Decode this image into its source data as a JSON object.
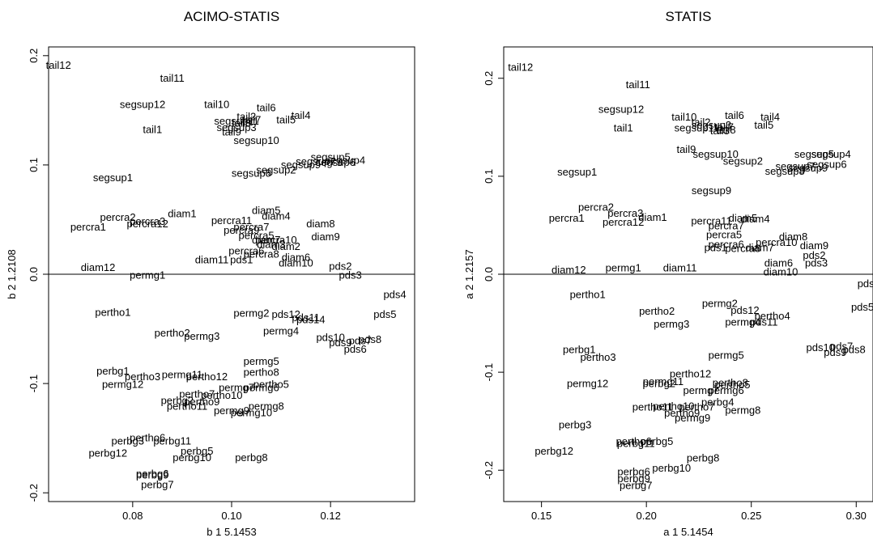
{
  "chart_data": [
    {
      "type": "scatter",
      "title": "ACIMO-STATIS",
      "xlabel": "b 1 5.1453",
      "ylabel": "b 2 1.2108",
      "xlim": [
        0.063,
        0.137
      ],
      "ylim": [
        -0.208,
        0.208
      ],
      "xticks": [
        0.08,
        0.1,
        0.12
      ],
      "xtick_labels": [
        "0.08",
        "0.10",
        "0.12"
      ],
      "yticks": [
        -0.2,
        -0.1,
        0.0,
        0.1,
        0.2
      ],
      "ytick_labels": [
        "-0.2",
        "-0.1",
        "0.0",
        "0.1",
        "0.2"
      ],
      "hline": 0,
      "points": [
        {
          "label": "tail12",
          "x": 0.065,
          "y": 0.191
        },
        {
          "label": "tail11",
          "x": 0.088,
          "y": 0.179
        },
        {
          "label": "tail10",
          "x": 0.097,
          "y": 0.155
        },
        {
          "label": "tail6",
          "x": 0.107,
          "y": 0.152
        },
        {
          "label": "tail4",
          "x": 0.114,
          "y": 0.145
        },
        {
          "label": "tail5",
          "x": 0.111,
          "y": 0.141
        },
        {
          "label": "tail7",
          "x": 0.104,
          "y": 0.141
        },
        {
          "label": "tail2",
          "x": 0.103,
          "y": 0.144
        },
        {
          "label": "tail3",
          "x": 0.102,
          "y": 0.138
        },
        {
          "label": "tail8",
          "x": 0.102,
          "y": 0.138
        },
        {
          "label": "tail9",
          "x": 0.1,
          "y": 0.13
        },
        {
          "label": "segsup12",
          "x": 0.082,
          "y": 0.155
        },
        {
          "label": "segsup11",
          "x": 0.101,
          "y": 0.14
        },
        {
          "label": "segsup3",
          "x": 0.101,
          "y": 0.134
        },
        {
          "label": "tail1",
          "x": 0.084,
          "y": 0.132
        },
        {
          "label": "segsup10",
          "x": 0.105,
          "y": 0.122
        },
        {
          "label": "segsup5",
          "x": 0.12,
          "y": 0.107
        },
        {
          "label": "segsup4",
          "x": 0.123,
          "y": 0.104
        },
        {
          "label": "segsup6",
          "x": 0.121,
          "y": 0.102
        },
        {
          "label": "segsup7",
          "x": 0.117,
          "y": 0.103
        },
        {
          "label": "segsup9",
          "x": 0.114,
          "y": 0.1
        },
        {
          "label": "segsup2",
          "x": 0.109,
          "y": 0.095
        },
        {
          "label": "segsup8",
          "x": 0.104,
          "y": 0.092
        },
        {
          "label": "segsup1",
          "x": 0.076,
          "y": 0.088
        },
        {
          "label": "percra2",
          "x": 0.077,
          "y": 0.052
        },
        {
          "label": "percra1",
          "x": 0.071,
          "y": 0.043
        },
        {
          "label": "percra3",
          "x": 0.083,
          "y": 0.048
        },
        {
          "label": "percra12",
          "x": 0.083,
          "y": 0.046
        },
        {
          "label": "diam1",
          "x": 0.09,
          "y": 0.055
        },
        {
          "label": "diam5",
          "x": 0.107,
          "y": 0.058
        },
        {
          "label": "diam4",
          "x": 0.109,
          "y": 0.053
        },
        {
          "label": "percra11",
          "x": 0.1,
          "y": 0.049
        },
        {
          "label": "percra7",
          "x": 0.104,
          "y": 0.043
        },
        {
          "label": "percra9",
          "x": 0.102,
          "y": 0.04
        },
        {
          "label": "diam8",
          "x": 0.118,
          "y": 0.046
        },
        {
          "label": "percra5",
          "x": 0.105,
          "y": 0.035
        },
        {
          "label": "diam7",
          "x": 0.107,
          "y": 0.031
        },
        {
          "label": "percra10",
          "x": 0.109,
          "y": 0.031
        },
        {
          "label": "diam9",
          "x": 0.119,
          "y": 0.034
        },
        {
          "label": "diam3",
          "x": 0.108,
          "y": 0.027
        },
        {
          "label": "diam2",
          "x": 0.111,
          "y": 0.025
        },
        {
          "label": "percra6",
          "x": 0.103,
          "y": 0.021
        },
        {
          "label": "percra8",
          "x": 0.106,
          "y": 0.018
        },
        {
          "label": "diam11",
          "x": 0.096,
          "y": 0.013
        },
        {
          "label": "pds1",
          "x": 0.102,
          "y": 0.013
        },
        {
          "label": "diam6",
          "x": 0.113,
          "y": 0.015
        },
        {
          "label": "diam10",
          "x": 0.113,
          "y": 0.01
        },
        {
          "label": "diam12",
          "x": 0.073,
          "y": 0.006
        },
        {
          "label": "permg1",
          "x": 0.083,
          "y": -0.001
        },
        {
          "label": "pds2",
          "x": 0.122,
          "y": 0.007
        },
        {
          "label": "pds3",
          "x": 0.124,
          "y": -0.001
        },
        {
          "label": "pds4",
          "x": 0.133,
          "y": -0.019
        },
        {
          "label": "pds5",
          "x": 0.131,
          "y": -0.037
        },
        {
          "label": "pertho1",
          "x": 0.076,
          "y": -0.035
        },
        {
          "label": "permg2",
          "x": 0.104,
          "y": -0.036
        },
        {
          "label": "pds12",
          "x": 0.111,
          "y": -0.037
        },
        {
          "label": "pds11",
          "x": 0.115,
          "y": -0.04
        },
        {
          "label": "pds14",
          "x": 0.116,
          "y": -0.042
        },
        {
          "label": "pertho2",
          "x": 0.088,
          "y": -0.054
        },
        {
          "label": "permg3",
          "x": 0.094,
          "y": -0.057
        },
        {
          "label": "permg4",
          "x": 0.11,
          "y": -0.052
        },
        {
          "label": "pds10",
          "x": 0.12,
          "y": -0.058
        },
        {
          "label": "pds7",
          "x": 0.126,
          "y": -0.061
        },
        {
          "label": "pds8",
          "x": 0.128,
          "y": -0.06
        },
        {
          "label": "pds9",
          "x": 0.122,
          "y": -0.063
        },
        {
          "label": "pds6",
          "x": 0.125,
          "y": -0.069
        },
        {
          "label": "permg5",
          "x": 0.106,
          "y": -0.08
        },
        {
          "label": "pertho8",
          "x": 0.106,
          "y": -0.09
        },
        {
          "label": "perbg1",
          "x": 0.076,
          "y": -0.089
        },
        {
          "label": "pertho3",
          "x": 0.082,
          "y": -0.094
        },
        {
          "label": "permg11",
          "x": 0.09,
          "y": -0.092
        },
        {
          "label": "pertho12",
          "x": 0.095,
          "y": -0.094
        },
        {
          "label": "permg12",
          "x": 0.078,
          "y": -0.101
        },
        {
          "label": "pertho5",
          "x": 0.108,
          "y": -0.101
        },
        {
          "label": "permg6",
          "x": 0.106,
          "y": -0.104
        },
        {
          "label": "permg7",
          "x": 0.101,
          "y": -0.104
        },
        {
          "label": "pertho7",
          "x": 0.093,
          "y": -0.11
        },
        {
          "label": "pertho10",
          "x": 0.098,
          "y": -0.111
        },
        {
          "label": "perbg2",
          "x": 0.089,
          "y": -0.116
        },
        {
          "label": "pertho9",
          "x": 0.094,
          "y": -0.117
        },
        {
          "label": "pertho11",
          "x": 0.091,
          "y": -0.121
        },
        {
          "label": "permg8",
          "x": 0.107,
          "y": -0.121
        },
        {
          "label": "permg9",
          "x": 0.1,
          "y": -0.125
        },
        {
          "label": "permg10",
          "x": 0.104,
          "y": -0.127
        },
        {
          "label": "perbg3",
          "x": 0.079,
          "y": -0.153
        },
        {
          "label": "pertho6",
          "x": 0.083,
          "y": -0.15
        },
        {
          "label": "perbg11",
          "x": 0.088,
          "y": -0.153
        },
        {
          "label": "perbg12",
          "x": 0.075,
          "y": -0.164
        },
        {
          "label": "perbg5",
          "x": 0.093,
          "y": -0.162
        },
        {
          "label": "perbg10",
          "x": 0.092,
          "y": -0.168
        },
        {
          "label": "perbg8",
          "x": 0.104,
          "y": -0.168
        },
        {
          "label": "perbg6",
          "x": 0.084,
          "y": -0.183
        },
        {
          "label": "perbg9",
          "x": 0.084,
          "y": -0.184
        },
        {
          "label": "perbg7",
          "x": 0.085,
          "y": -0.193
        }
      ]
    },
    {
      "type": "scatter",
      "title": "STATIS",
      "xlabel": "a 1 5.1454",
      "ylabel": "a 2 1.2157",
      "xlim": [
        0.132,
        0.308
      ],
      "ylim": [
        -0.232,
        0.232
      ],
      "xticks": [
        0.15,
        0.2,
        0.25,
        0.3
      ],
      "xtick_labels": [
        "0.15",
        "0.20",
        "0.25",
        "0.30"
      ],
      "yticks": [
        -0.2,
        -0.1,
        0.0,
        0.1,
        0.2
      ],
      "ytick_labels": [
        "-0.2",
        "-0.1",
        "0.0",
        "0.1",
        "0.2"
      ],
      "hline": 0,
      "points": [
        {
          "label": "tail12",
          "x": 0.14,
          "y": 0.211
        },
        {
          "label": "tail11",
          "x": 0.196,
          "y": 0.193
        },
        {
          "label": "segsup12",
          "x": 0.188,
          "y": 0.168
        },
        {
          "label": "tail10",
          "x": 0.218,
          "y": 0.16
        },
        {
          "label": "tail6",
          "x": 0.242,
          "y": 0.162
        },
        {
          "label": "tail4",
          "x": 0.259,
          "y": 0.16
        },
        {
          "label": "tail2",
          "x": 0.226,
          "y": 0.155
        },
        {
          "label": "segsup3",
          "x": 0.231,
          "y": 0.152
        },
        {
          "label": "tail7",
          "x": 0.237,
          "y": 0.15
        },
        {
          "label": "tail5",
          "x": 0.256,
          "y": 0.152
        },
        {
          "label": "segsup11",
          "x": 0.224,
          "y": 0.149
        },
        {
          "label": "tail1",
          "x": 0.189,
          "y": 0.149
        },
        {
          "label": "tail3",
          "x": 0.235,
          "y": 0.146
        },
        {
          "label": "tail8",
          "x": 0.238,
          "y": 0.147
        },
        {
          "label": "tail9",
          "x": 0.219,
          "y": 0.127
        },
        {
          "label": "segsup10",
          "x": 0.233,
          "y": 0.122
        },
        {
          "label": "segsup5",
          "x": 0.28,
          "y": 0.122
        },
        {
          "label": "segsup4",
          "x": 0.288,
          "y": 0.122
        },
        {
          "label": "segsup2",
          "x": 0.246,
          "y": 0.115
        },
        {
          "label": "segsup6",
          "x": 0.286,
          "y": 0.112
        },
        {
          "label": "segsup7",
          "x": 0.271,
          "y": 0.11
        },
        {
          "label": "segsup9",
          "x": 0.277,
          "y": 0.108
        },
        {
          "label": "segsup8",
          "x": 0.266,
          "y": 0.105
        },
        {
          "label": "segsup1",
          "x": 0.167,
          "y": 0.104
        },
        {
          "label": "segsup9",
          "x": 0.231,
          "y": 0.085
        },
        {
          "label": "percra2",
          "x": 0.176,
          "y": 0.068
        },
        {
          "label": "percra3",
          "x": 0.19,
          "y": 0.062
        },
        {
          "label": "percra1",
          "x": 0.162,
          "y": 0.057
        },
        {
          "label": "diam1",
          "x": 0.203,
          "y": 0.058
        },
        {
          "label": "percra12",
          "x": 0.189,
          "y": 0.053
        },
        {
          "label": "percra11",
          "x": 0.231,
          "y": 0.054
        },
        {
          "label": "diam5",
          "x": 0.246,
          "y": 0.057
        },
        {
          "label": "diam4",
          "x": 0.252,
          "y": 0.056
        },
        {
          "label": "percra7",
          "x": 0.238,
          "y": 0.049
        },
        {
          "label": "percra5",
          "x": 0.237,
          "y": 0.04
        },
        {
          "label": "diam8",
          "x": 0.27,
          "y": 0.038
        },
        {
          "label": "diam9",
          "x": 0.28,
          "y": 0.029
        },
        {
          "label": "percra10",
          "x": 0.262,
          "y": 0.032
        },
        {
          "label": "percra6",
          "x": 0.238,
          "y": 0.03
        },
        {
          "label": "pds1",
          "x": 0.233,
          "y": 0.027
        },
        {
          "label": "percra8",
          "x": 0.246,
          "y": 0.026
        },
        {
          "label": "diam7",
          "x": 0.254,
          "y": 0.027
        },
        {
          "label": "pds2",
          "x": 0.28,
          "y": 0.019
        },
        {
          "label": "pds3",
          "x": 0.281,
          "y": 0.011
        },
        {
          "label": "diam6",
          "x": 0.263,
          "y": 0.011
        },
        {
          "label": "diam12",
          "x": 0.163,
          "y": 0.004
        },
        {
          "label": "permg1",
          "x": 0.189,
          "y": 0.006
        },
        {
          "label": "diam11",
          "x": 0.216,
          "y": 0.006
        },
        {
          "label": "diam10",
          "x": 0.264,
          "y": 0.002
        },
        {
          "label": "pds4",
          "x": 0.306,
          "y": -0.01
        },
        {
          "label": "pds5",
          "x": 0.303,
          "y": -0.034
        },
        {
          "label": "pertho1",
          "x": 0.172,
          "y": -0.021
        },
        {
          "label": "permg2",
          "x": 0.235,
          "y": -0.03
        },
        {
          "label": "pertho2",
          "x": 0.205,
          "y": -0.038
        },
        {
          "label": "pds12",
          "x": 0.247,
          "y": -0.037
        },
        {
          "label": "pertho4",
          "x": 0.26,
          "y": -0.043
        },
        {
          "label": "permg3",
          "x": 0.212,
          "y": -0.051
        },
        {
          "label": "permg4",
          "x": 0.246,
          "y": -0.049
        },
        {
          "label": "pds11",
          "x": 0.256,
          "y": -0.049
        },
        {
          "label": "pds10",
          "x": 0.283,
          "y": -0.075
        },
        {
          "label": "pds7",
          "x": 0.293,
          "y": -0.074
        },
        {
          "label": "pds8",
          "x": 0.299,
          "y": -0.077
        },
        {
          "label": "pds9",
          "x": 0.29,
          "y": -0.08
        },
        {
          "label": "perbg1",
          "x": 0.168,
          "y": -0.077
        },
        {
          "label": "pertho3",
          "x": 0.177,
          "y": -0.085
        },
        {
          "label": "permg5",
          "x": 0.238,
          "y": -0.083
        },
        {
          "label": "pertho12",
          "x": 0.221,
          "y": -0.102
        },
        {
          "label": "permg12",
          "x": 0.172,
          "y": -0.112
        },
        {
          "label": "perbg2",
          "x": 0.206,
          "y": -0.112
        },
        {
          "label": "permg11",
          "x": 0.208,
          "y": -0.11
        },
        {
          "label": "pertho8",
          "x": 0.24,
          "y": -0.111
        },
        {
          "label": "pertho5",
          "x": 0.241,
          "y": -0.113
        },
        {
          "label": "permg6",
          "x": 0.238,
          "y": -0.119
        },
        {
          "label": "permg7",
          "x": 0.226,
          "y": -0.119
        },
        {
          "label": "pertho11",
          "x": 0.203,
          "y": -0.136
        },
        {
          "label": "pertho10",
          "x": 0.213,
          "y": -0.135
        },
        {
          "label": "pertho7",
          "x": 0.224,
          "y": -0.136
        },
        {
          "label": "perbg4",
          "x": 0.234,
          "y": -0.131
        },
        {
          "label": "pertho9",
          "x": 0.217,
          "y": -0.142
        },
        {
          "label": "permg8",
          "x": 0.246,
          "y": -0.139
        },
        {
          "label": "permg9",
          "x": 0.222,
          "y": -0.147
        },
        {
          "label": "perbg3",
          "x": 0.166,
          "y": -0.154
        },
        {
          "label": "pertho6",
          "x": 0.194,
          "y": -0.171
        },
        {
          "label": "perbg11",
          "x": 0.195,
          "y": -0.173
        },
        {
          "label": "perbg5",
          "x": 0.205,
          "y": -0.171
        },
        {
          "label": "perbg12",
          "x": 0.156,
          "y": -0.181
        },
        {
          "label": "perbg8",
          "x": 0.227,
          "y": -0.188
        },
        {
          "label": "perbg10",
          "x": 0.212,
          "y": -0.198
        },
        {
          "label": "perbg6",
          "x": 0.194,
          "y": -0.202
        },
        {
          "label": "perbg9",
          "x": 0.194,
          "y": -0.209
        },
        {
          "label": "perbg7",
          "x": 0.195,
          "y": -0.216
        }
      ]
    }
  ]
}
